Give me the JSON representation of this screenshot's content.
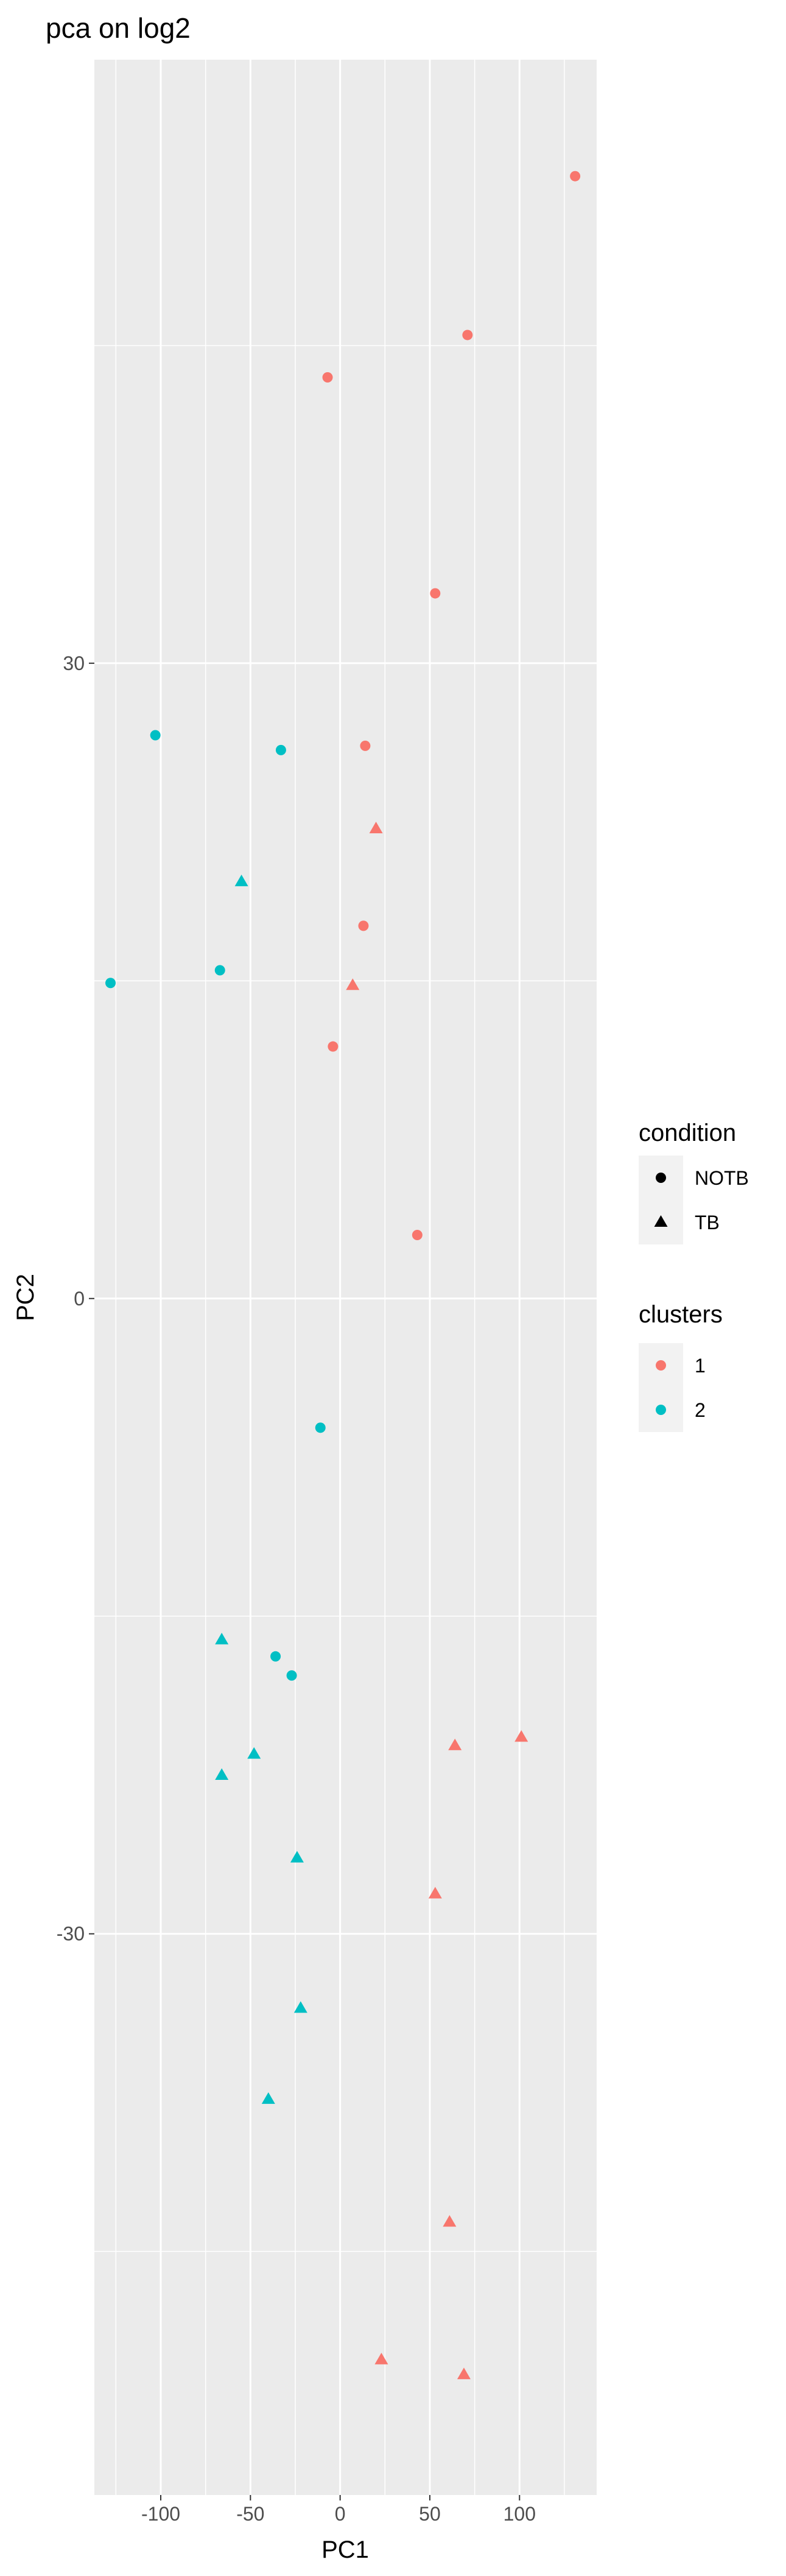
{
  "chart_data": {
    "type": "scatter",
    "title": "pca on log2",
    "xlabel": "PC1",
    "ylabel": "PC2",
    "xlim": [
      -137,
      143
    ],
    "ylim": [
      -56.5,
      58.5
    ],
    "x_ticks": [
      -100,
      -50,
      0,
      50,
      100
    ],
    "x_tick_labels": [
      "-100",
      "-50",
      "0",
      "50",
      "100"
    ],
    "y_ticks": [
      -30,
      0,
      30
    ],
    "y_tick_labels": [
      "-30",
      "0",
      "30"
    ],
    "x_minor_ticks": [
      -125,
      -75,
      -25,
      25,
      75,
      125
    ],
    "y_minor_ticks": [
      -45,
      -15,
      15,
      45
    ],
    "grid": true,
    "background": "#ebebeb",
    "legend_position": "right",
    "legends": [
      {
        "title": "condition",
        "entries": [
          {
            "label": "NOTB",
            "shape": "circle"
          },
          {
            "label": "TB",
            "shape": "triangle"
          }
        ]
      },
      {
        "title": "clusters",
        "entries": [
          {
            "label": "1",
            "color": "#f8766d"
          },
          {
            "label": "2",
            "color": "#00bfc4"
          }
        ]
      }
    ],
    "points": [
      {
        "x": 131,
        "y": 53.0,
        "condition": "NOTB",
        "cluster": "1"
      },
      {
        "x": 71,
        "y": 45.5,
        "condition": "NOTB",
        "cluster": "1"
      },
      {
        "x": -7,
        "y": 43.5,
        "condition": "NOTB",
        "cluster": "1"
      },
      {
        "x": 53,
        "y": 33.3,
        "condition": "NOTB",
        "cluster": "1"
      },
      {
        "x": 14,
        "y": 26.1,
        "condition": "NOTB",
        "cluster": "1"
      },
      {
        "x": 20,
        "y": 22.2,
        "condition": "TB",
        "cluster": "1"
      },
      {
        "x": 13,
        "y": 17.6,
        "condition": "NOTB",
        "cluster": "1"
      },
      {
        "x": 7,
        "y": 14.8,
        "condition": "TB",
        "cluster": "1"
      },
      {
        "x": -4,
        "y": 11.9,
        "condition": "NOTB",
        "cluster": "1"
      },
      {
        "x": 43,
        "y": 3.0,
        "condition": "NOTB",
        "cluster": "1"
      },
      {
        "x": -103,
        "y": 26.6,
        "condition": "NOTB",
        "cluster": "2"
      },
      {
        "x": -33,
        "y": 25.9,
        "condition": "NOTB",
        "cluster": "2"
      },
      {
        "x": -55,
        "y": 19.7,
        "condition": "TB",
        "cluster": "2"
      },
      {
        "x": -67,
        "y": 15.5,
        "condition": "NOTB",
        "cluster": "2"
      },
      {
        "x": -128,
        "y": 14.9,
        "condition": "NOTB",
        "cluster": "2"
      },
      {
        "x": -11,
        "y": -6.1,
        "condition": "NOTB",
        "cluster": "2"
      },
      {
        "x": -66,
        "y": -16.1,
        "condition": "TB",
        "cluster": "2"
      },
      {
        "x": -36,
        "y": -16.9,
        "condition": "NOTB",
        "cluster": "2"
      },
      {
        "x": -27,
        "y": -17.8,
        "condition": "NOTB",
        "cluster": "2"
      },
      {
        "x": -48,
        "y": -21.5,
        "condition": "TB",
        "cluster": "2"
      },
      {
        "x": -66,
        "y": -22.5,
        "condition": "TB",
        "cluster": "2"
      },
      {
        "x": 101,
        "y": -20.7,
        "condition": "TB",
        "cluster": "1"
      },
      {
        "x": 64,
        "y": -21.1,
        "condition": "TB",
        "cluster": "1"
      },
      {
        "x": -24,
        "y": -26.4,
        "condition": "TB",
        "cluster": "2"
      },
      {
        "x": 53,
        "y": -28.1,
        "condition": "TB",
        "cluster": "1"
      },
      {
        "x": -22,
        "y": -33.5,
        "condition": "TB",
        "cluster": "2"
      },
      {
        "x": -40,
        "y": -37.8,
        "condition": "TB",
        "cluster": "2"
      },
      {
        "x": 61,
        "y": -43.6,
        "condition": "TB",
        "cluster": "1"
      },
      {
        "x": 23,
        "y": -50.1,
        "condition": "TB",
        "cluster": "1"
      },
      {
        "x": 69,
        "y": -50.8,
        "condition": "TB",
        "cluster": "1"
      }
    ]
  }
}
